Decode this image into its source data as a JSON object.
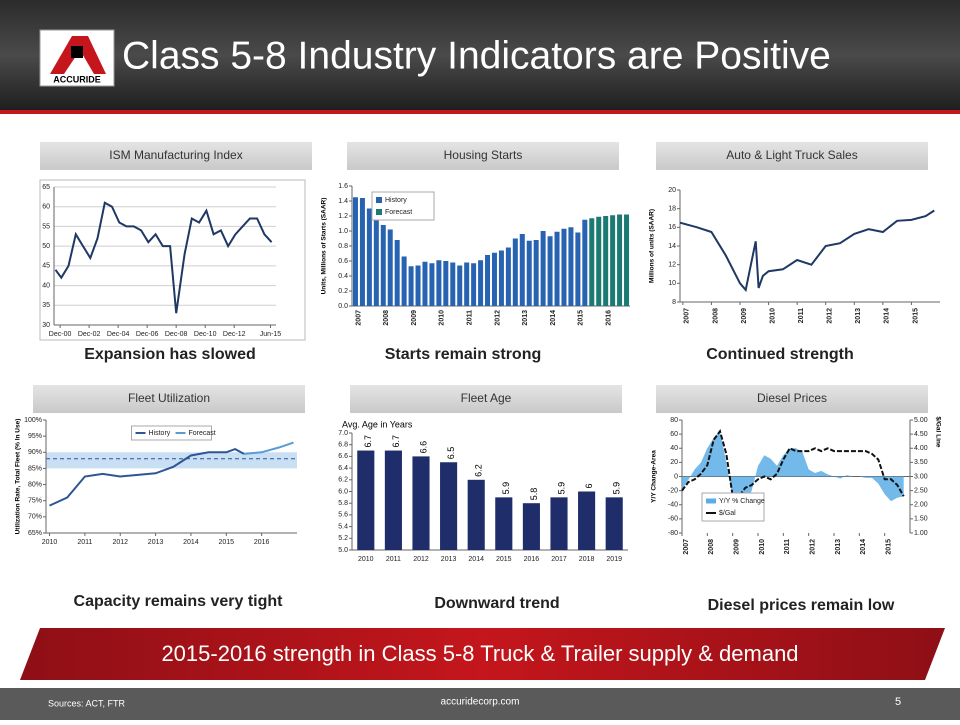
{
  "header": {
    "title": "Class 5-8 Industry Indicators are Positive",
    "logo": "ACCURIDE"
  },
  "banner": "2015-2016 strength in Class 5-8 Truck & Trailer supply & demand",
  "footer": {
    "sources": "Sources: ACT, FTR",
    "website": "accuridecorp.com",
    "page": "5"
  },
  "chart_data": [
    {
      "type": "line",
      "title": "ISM Manufacturing Index",
      "caption": "Expansion has slowed",
      "grid": true,
      "x": [
        2000.6,
        2001,
        2001.5,
        2002,
        2002.5,
        2003,
        2003.5,
        2004,
        2004.5,
        2005,
        2005.5,
        2006,
        2006.5,
        2007,
        2007.5,
        2008,
        2008.5,
        2008.92,
        2009.5,
        2010,
        2010.5,
        2011,
        2011.5,
        2012,
        2012.5,
        2013,
        2013.5,
        2014,
        2014.5,
        2015,
        2015.5
      ],
      "series": [
        {
          "color": "#1f3864",
          "values": [
            44,
            42,
            45,
            53,
            50,
            47,
            52,
            61,
            60,
            56,
            55,
            55,
            54,
            51,
            53,
            50,
            50,
            33,
            48,
            57,
            56,
            59,
            53,
            54,
            50,
            53,
            55,
            57,
            57,
            53,
            51
          ]
        }
      ],
      "xlim": [
        2000.5,
        2015.8
      ],
      "xticks": [
        {
          "value": 2000.92,
          "label": "Dec-00"
        },
        {
          "value": 2002.92,
          "label": "Dec-02"
        },
        {
          "value": 2004.92,
          "label": "Dec-04"
        },
        {
          "value": 2006.92,
          "label": "Dec-06"
        },
        {
          "value": 2008.92,
          "label": "Dec-08"
        },
        {
          "value": 2010.92,
          "label": "Dec-10"
        },
        {
          "value": 2012.92,
          "label": "Dec-12"
        },
        {
          "value": 2015.42,
          "label": "Jun-15"
        }
      ],
      "ylim": [
        30,
        65
      ],
      "yticks": [
        30,
        35,
        40,
        45,
        50,
        55,
        60,
        65
      ]
    },
    {
      "type": "bar",
      "title": "Housing Starts",
      "caption": "Starts remain strong",
      "y_label": "Units, Millions of Starts (SAAR)",
      "legend": "upper left",
      "categories": [
        "2007",
        null,
        null,
        null,
        "2008",
        null,
        null,
        null,
        "2009",
        null,
        null,
        null,
        "2010",
        null,
        null,
        null,
        "2011",
        null,
        null,
        null,
        "2012",
        null,
        null,
        null,
        "2013",
        null,
        null,
        null,
        "2014",
        null,
        null,
        null,
        "2015",
        null,
        null,
        null,
        "2016",
        null,
        null,
        null
      ],
      "series": [
        {
          "name": "History",
          "color": "#2763b0",
          "values": [
            1.45,
            1.44,
            1.3,
            1.17,
            1.08,
            1.02,
            0.88,
            0.66,
            0.53,
            0.54,
            0.59,
            0.57,
            0.61,
            0.6,
            0.58,
            0.54,
            0.58,
            0.57,
            0.61,
            0.68,
            0.71,
            0.74,
            0.78,
            0.9,
            0.96,
            0.87,
            0.88,
            1.0,
            0.93,
            0.99,
            1.03,
            1.05,
            0.98,
            1.15,
            null,
            null,
            null,
            null,
            null,
            null
          ]
        },
        {
          "name": "Forecast",
          "color": "#1b7b73",
          "values": [
            null,
            null,
            null,
            null,
            null,
            null,
            null,
            null,
            null,
            null,
            null,
            null,
            null,
            null,
            null,
            null,
            null,
            null,
            null,
            null,
            null,
            null,
            null,
            null,
            null,
            null,
            null,
            null,
            null,
            null,
            null,
            null,
            null,
            null,
            1.17,
            1.19,
            1.2,
            1.21,
            1.22,
            1.22
          ]
        }
      ],
      "ylim": [
        0,
        1.6
      ],
      "yticks": [
        {
          "value": 0,
          "label": "0.0"
        },
        0.2,
        0.4,
        0.6,
        0.8,
        {
          "value": 1,
          "label": "1.0"
        },
        1.2,
        1.4,
        1.6
      ]
    },
    {
      "type": "line",
      "title": "Auto & Light Truck Sales",
      "caption": "Continued strength",
      "y_label": "Millions of units (SAAR)",
      "x": [
        2006.9,
        2007.5,
        2008,
        2008.5,
        2009,
        2009.2,
        2009.55,
        2009.65,
        2009.8,
        2010,
        2010.5,
        2011,
        2011.5,
        2012,
        2012.5,
        2013,
        2013.5,
        2014,
        2014.5,
        2015,
        2015.5,
        2015.8
      ],
      "series": [
        {
          "color": "#1f3864",
          "values": [
            16.5,
            16.0,
            15.5,
            13.0,
            10.0,
            9.3,
            14.5,
            9.5,
            10.8,
            11.3,
            11.5,
            12.5,
            12.0,
            14.0,
            14.3,
            15.3,
            15.8,
            15.5,
            16.7,
            16.8,
            17.2,
            17.8
          ]
        }
      ],
      "xlim": [
        2006.9,
        2016.0
      ],
      "xticks": [
        2007,
        2008,
        2009,
        2010,
        2011,
        2012,
        2013,
        2014,
        2015
      ],
      "ylim": [
        8,
        20
      ],
      "yticks": [
        8,
        10,
        12,
        14,
        16,
        18,
        20
      ]
    },
    {
      "type": "line",
      "title": "Fleet Utilization",
      "caption": "Capacity remains very tight",
      "y_label": "Utilization Rate, Total Fleet (% In Use)",
      "legend": "upper center",
      "band": [
        85,
        90
      ],
      "reference_line": 88,
      "x": [
        2010,
        2010.5,
        2011,
        2011.5,
        2012,
        2012.5,
        2013,
        2013.5,
        2014,
        2014.5,
        2015,
        2015.25,
        2015.5,
        2016,
        2016.5,
        2016.9
      ],
      "series": [
        {
          "name": "History",
          "color": "#2f5597",
          "values": [
            73.5,
            76,
            82.5,
            83.3,
            82.5,
            83,
            83.5,
            85.5,
            89,
            90,
            90,
            91,
            89.5,
            null,
            null,
            null
          ]
        },
        {
          "name": "Forecast",
          "color": "#5b9bd5",
          "values": [
            null,
            null,
            null,
            null,
            null,
            null,
            null,
            null,
            null,
            null,
            null,
            null,
            89.5,
            90,
            91.5,
            93
          ]
        }
      ],
      "xlim": [
        2009.9,
        2017
      ],
      "xticks": [
        2010,
        2011,
        2012,
        2013,
        2014,
        2015,
        2016
      ],
      "ylim": [
        65,
        100
      ],
      "yticks": [
        {
          "value": 65,
          "label": "65%"
        },
        {
          "value": 70,
          "label": "70%"
        },
        {
          "value": 75,
          "label": "75%"
        },
        {
          "value": 80,
          "label": "80%"
        },
        {
          "value": 85,
          "label": "85%"
        },
        {
          "value": 90,
          "label": "90%"
        },
        {
          "value": 95,
          "label": "95%"
        },
        {
          "value": 100,
          "label": "100%"
        }
      ]
    },
    {
      "type": "bar",
      "title": "Fleet Age",
      "caption": "Downward trend",
      "annotation": "Avg. Age in Years",
      "data_labels": true,
      "categories": [
        "2010",
        "2011",
        "2012",
        "2013",
        "2014",
        "2015",
        "2016",
        "2017",
        "2018",
        "2019"
      ],
      "series": [
        {
          "color": "#1f2d6b",
          "values": [
            6.7,
            6.7,
            6.6,
            6.5,
            6.2,
            5.9,
            5.8,
            5.9,
            6.0,
            5.9
          ]
        }
      ],
      "ylim": [
        5.0,
        7.0
      ],
      "yticks": [
        {
          "value": 5,
          "label": "5.0"
        },
        5.2,
        5.4,
        5.6,
        5.8,
        {
          "value": 6,
          "label": "6.0"
        },
        6.2,
        6.4,
        6.6,
        6.8,
        {
          "value": 7,
          "label": "7.0"
        }
      ]
    },
    {
      "type": "combo",
      "title": "Diesel Prices",
      "caption": "Diesel prices remain low",
      "y_label": "Y/Y Change-Area",
      "y2_label": "$/Gal Line",
      "legend": "lower left",
      "x": [
        2007,
        2007.25,
        2007.5,
        2007.75,
        2008,
        2008.25,
        2008.5,
        2008.75,
        2009,
        2009.25,
        2009.5,
        2009.75,
        2010,
        2010.25,
        2010.5,
        2010.75,
        2011,
        2011.25,
        2011.5,
        2011.75,
        2012,
        2012.25,
        2012.5,
        2012.75,
        2013,
        2013.25,
        2013.5,
        2013.75,
        2014,
        2014.25,
        2014.5,
        2014.75,
        2015,
        2015.25,
        2015.5,
        2015.75
      ],
      "series": [
        {
          "name": "Y/Y % Change",
          "color": "#5aaee8",
          "style": "area",
          "values": [
            -18,
            -5,
            10,
            20,
            40,
            55,
            65,
            20,
            -30,
            -45,
            -40,
            -20,
            15,
            30,
            25,
            15,
            30,
            40,
            40,
            35,
            10,
            5,
            8,
            3,
            0,
            -3,
            2,
            0,
            0,
            -2,
            -2,
            -10,
            -25,
            -35,
            -30,
            -28
          ]
        },
        {
          "name": "$/Gal",
          "color": "#111111",
          "axis": "y2",
          "values": [
            2.5,
            2.8,
            2.9,
            3.1,
            3.4,
            4.3,
            4.6,
            3.8,
            2.3,
            2.3,
            2.6,
            2.7,
            2.9,
            3.0,
            2.9,
            3.1,
            3.6,
            4.0,
            3.9,
            3.9,
            3.9,
            4.0,
            3.9,
            4.0,
            3.9,
            3.9,
            3.9,
            3.9,
            3.9,
            3.9,
            3.8,
            3.6,
            2.9,
            2.9,
            2.7,
            2.3
          ]
        }
      ],
      "xlim": [
        2007,
        2016
      ],
      "xticks": [
        2007,
        2008,
        2009,
        2010,
        2011,
        2012,
        2013,
        2014,
        2015
      ],
      "ylim": [
        -80,
        80
      ],
      "yticks": [
        -80,
        -60,
        -40,
        -20,
        0,
        20,
        40,
        60,
        80
      ],
      "y2lim": [
        1,
        5
      ],
      "y2ticks": [
        {
          "value": 1,
          "label": "1.00"
        },
        {
          "value": 1.5,
          "label": "1.50"
        },
        {
          "value": 2,
          "label": "2.00"
        },
        {
          "value": 2.5,
          "label": "2.50"
        },
        {
          "value": 3,
          "label": "3.00"
        },
        {
          "value": 3.5,
          "label": "3.50"
        },
        {
          "value": 4,
          "label": "4.00"
        },
        {
          "value": 4.5,
          "label": "4.50"
        },
        {
          "value": 5,
          "label": "5.00"
        }
      ]
    }
  ]
}
